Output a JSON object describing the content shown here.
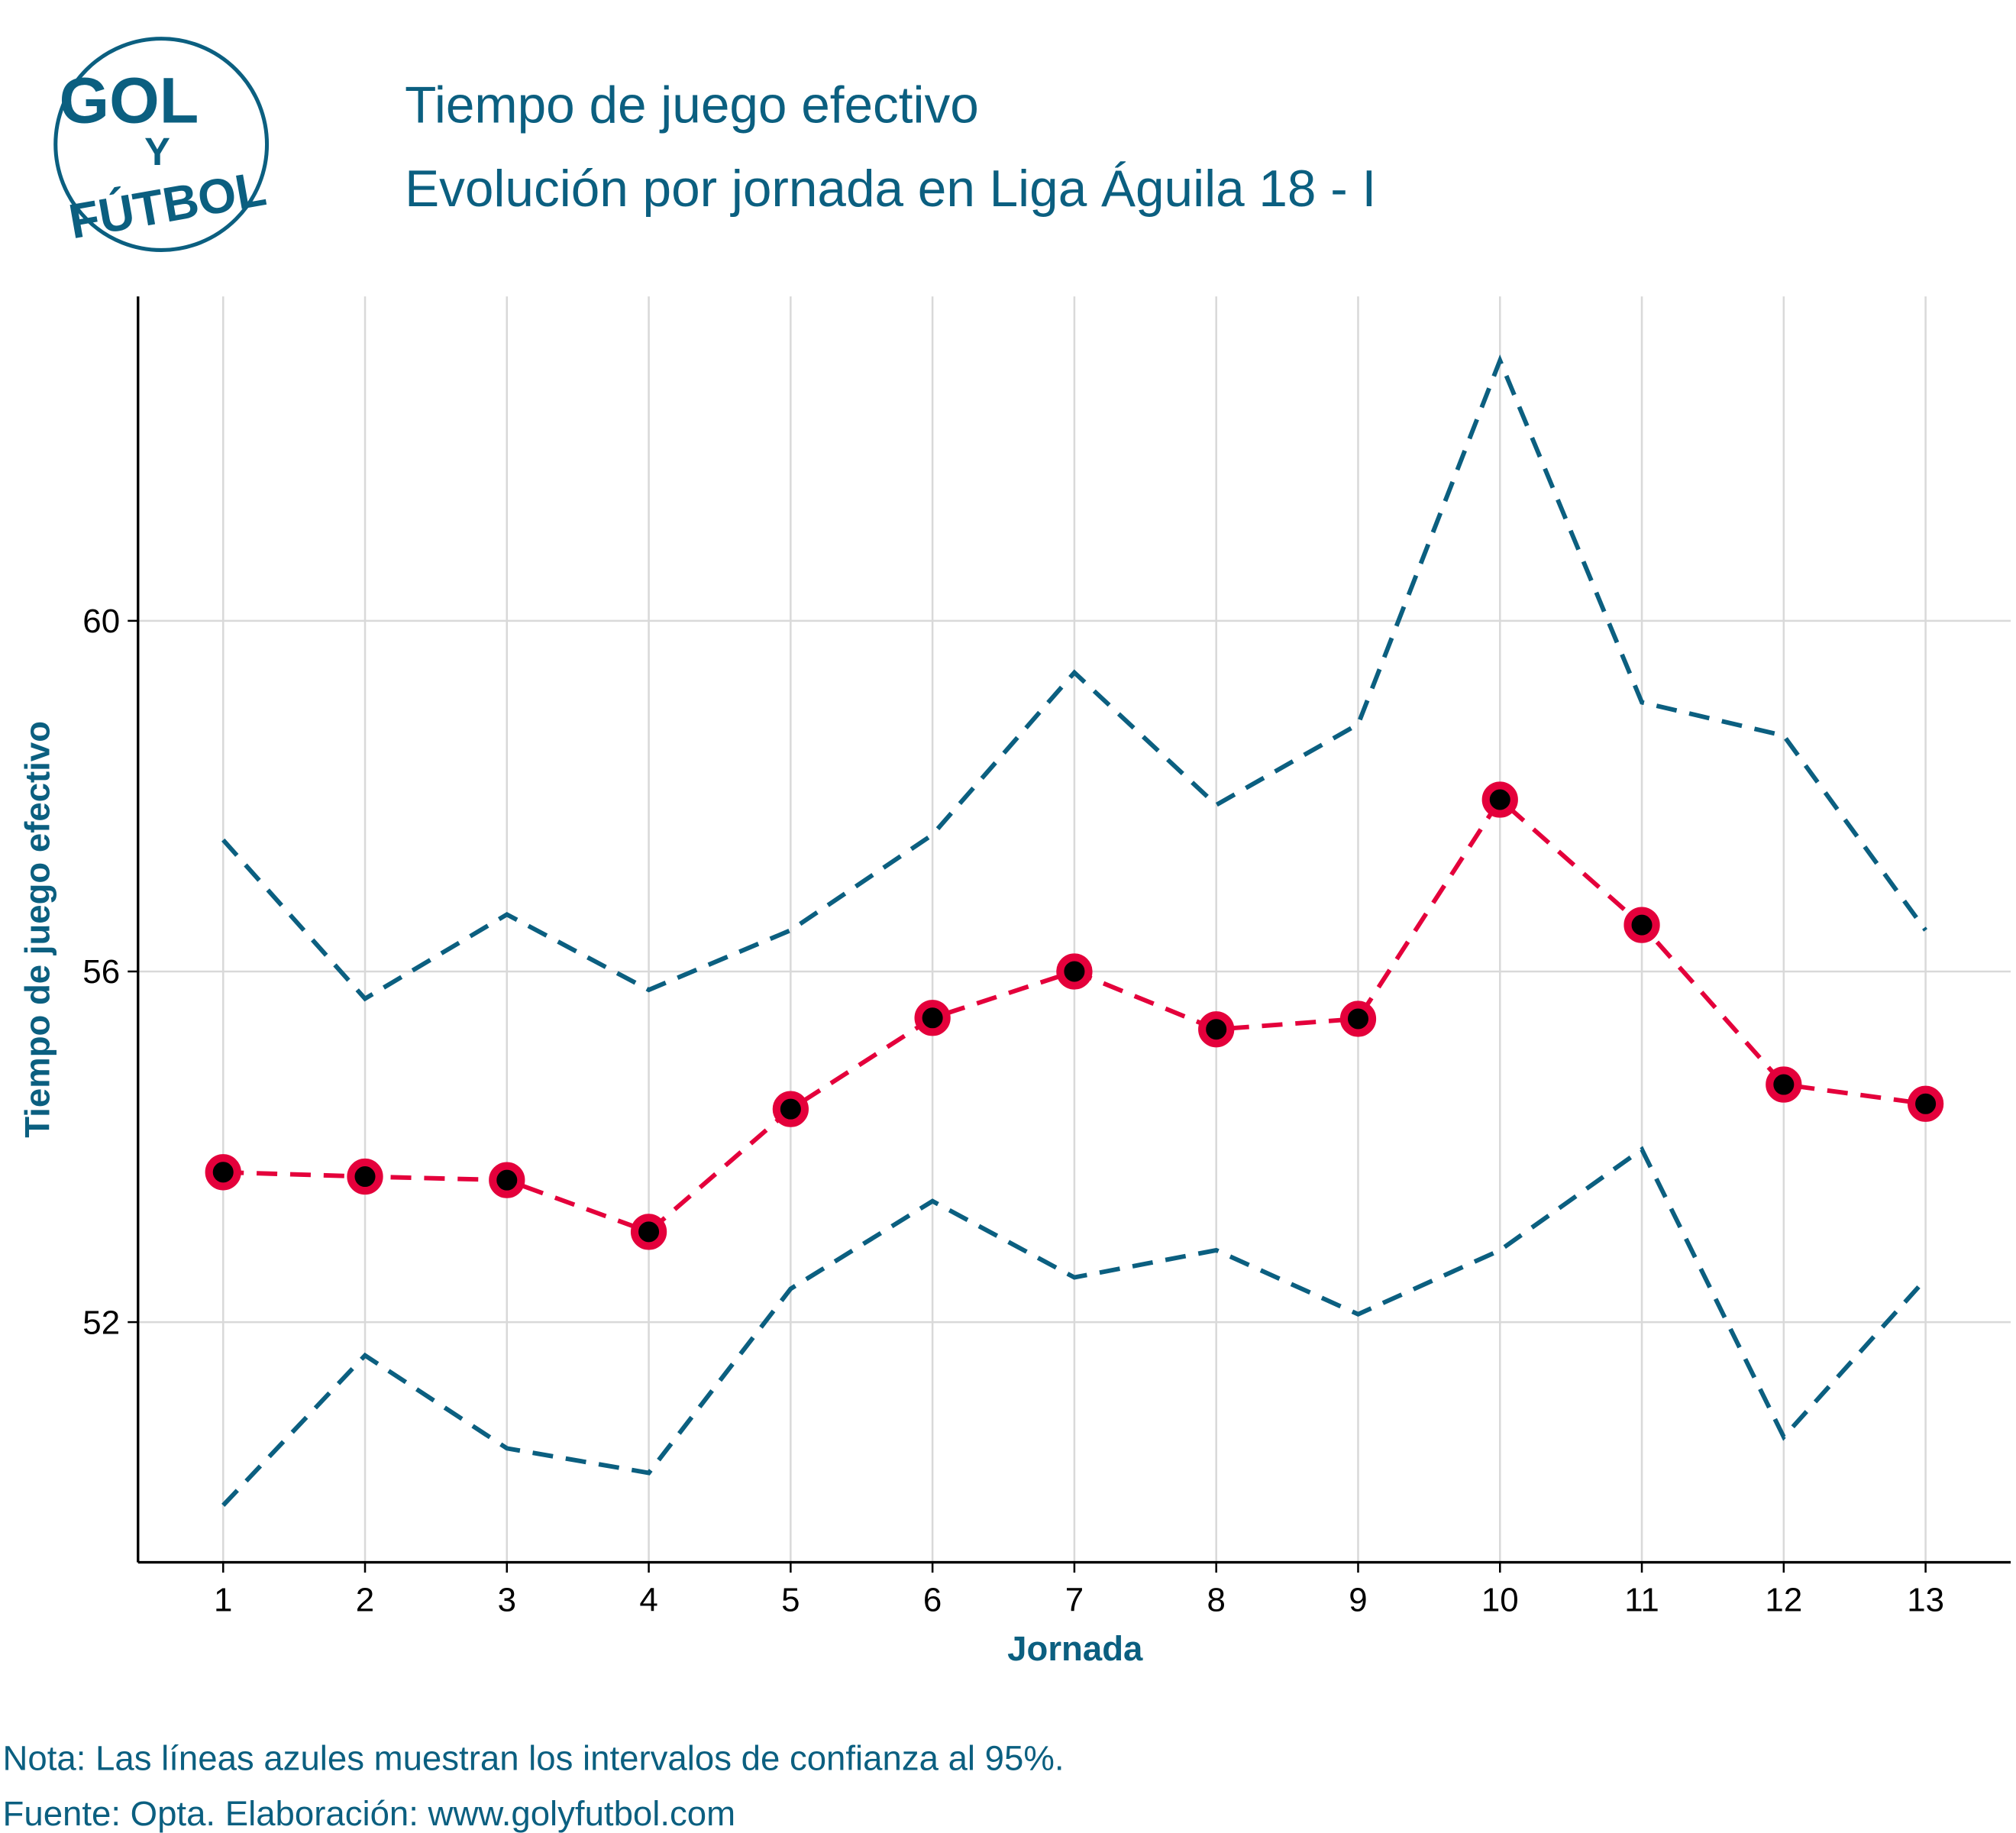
{
  "logo": {
    "line1": "GOL",
    "line2": "Y",
    "line3": "FÚTBOL"
  },
  "title": "Tiempo de juego efectivo",
  "subtitle": "Evolución por jornada en Liga Águila 18 - I",
  "caption": {
    "note": "Nota: Las líneas azules muestran los intervalos de confianza al 95%.",
    "source": "Fuente: Opta. Elaboración: www.golyfutbol.com"
  },
  "colors": {
    "accent": "#0b5f80",
    "mean": "#e4003b",
    "point": "#000000",
    "grid": "#d9d9d9"
  },
  "chart_data": {
    "type": "line",
    "title": "Tiempo de juego efectivo",
    "subtitle": "Evolución por jornada en Liga Águila 18 - I",
    "xlabel": "Jornada",
    "ylabel": "Tiempo de juego efectivo",
    "x": [
      1,
      2,
      3,
      4,
      5,
      6,
      7,
      8,
      9,
      10,
      11,
      12,
      13
    ],
    "xticks": [
      "1",
      "2",
      "3",
      "4",
      "5",
      "6",
      "7",
      "8",
      "9",
      "10",
      "11",
      "12",
      "13"
    ],
    "yticks": [
      "52",
      "56",
      "60"
    ],
    "ytick_values": [
      52,
      56,
      60
    ],
    "xlim": [
      0.4,
      13.6
    ],
    "ylim": [
      49.26,
      63.7
    ],
    "grid": true,
    "series": [
      {
        "role": "mean",
        "style": "dashed-with-points",
        "values": [
          53.71,
          53.66,
          53.62,
          53.03,
          54.43,
          55.47,
          56.0,
          55.34,
          55.46,
          57.96,
          56.53,
          54.71,
          54.49
        ]
      },
      {
        "role": "upper-ci",
        "style": "dashed",
        "values": [
          57.5,
          55.69,
          56.65,
          55.79,
          56.47,
          57.56,
          59.41,
          57.9,
          58.82,
          62.97,
          59.07,
          58.69,
          56.47
        ]
      },
      {
        "role": "lower-ci",
        "style": "dashed",
        "values": [
          49.91,
          51.62,
          50.56,
          50.28,
          52.38,
          53.38,
          52.51,
          52.82,
          52.09,
          52.82,
          53.97,
          50.69,
          52.49
        ]
      }
    ]
  }
}
